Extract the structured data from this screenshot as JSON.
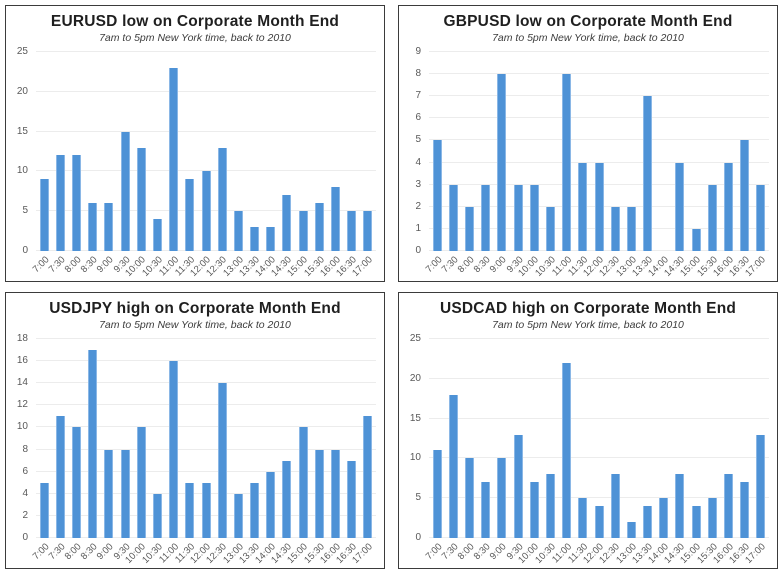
{
  "colors": {
    "bar_fill": "#4e92d6",
    "bar_edge": "#8ab7e6",
    "gridline": "#ececec",
    "axis_label": "#595959",
    "title_text": "#1f1f1f",
    "panel_border": "#3b3b3b",
    "background": "#ffffff"
  },
  "chart_data": [
    {
      "type": "bar",
      "title": "EURUSD low on Corporate Month End",
      "subtitle": "7am to 5pm New York time, back to 2010",
      "xlabel": "",
      "ylabel": "",
      "categories": [
        "7:00",
        "7:30",
        "8:00",
        "8:30",
        "9:00",
        "9:30",
        "10:00",
        "10:30",
        "11:00",
        "11:30",
        "12:00",
        "12:30",
        "13:00",
        "13:30",
        "14:00",
        "14:30",
        "15:00",
        "15:30",
        "16:00",
        "16:30",
        "17:00"
      ],
      "values": [
        9,
        12,
        12,
        6,
        6,
        15,
        13,
        4,
        23,
        9,
        10,
        13,
        5,
        3,
        3,
        7,
        5,
        6,
        8,
        5,
        5
      ],
      "ylim": [
        0,
        25
      ],
      "yticks": [
        0,
        5,
        10,
        15,
        20,
        25
      ],
      "grid": true,
      "legend": "none"
    },
    {
      "type": "bar",
      "title": "GBPUSD low on Corporate Month End",
      "subtitle": "7am to 5pm New York time, back to 2010",
      "xlabel": "",
      "ylabel": "",
      "categories": [
        "7:00",
        "7:30",
        "8:00",
        "8:30",
        "9:00",
        "9:30",
        "10:00",
        "10:30",
        "11:00",
        "11:30",
        "12:00",
        "12:30",
        "13:00",
        "13:30",
        "14:00",
        "14:30",
        "15:00",
        "15:30",
        "16:00",
        "16:30",
        "17:00"
      ],
      "values": [
        5,
        3,
        2,
        3,
        8,
        3,
        3,
        2,
        8,
        4,
        4,
        2,
        2,
        7,
        0,
        4,
        1,
        3,
        4,
        5,
        3
      ],
      "ylim": [
        0,
        9
      ],
      "yticks": [
        0,
        1,
        2,
        3,
        4,
        5,
        6,
        7,
        8,
        9
      ],
      "grid": true,
      "legend": "none"
    },
    {
      "type": "bar",
      "title": "USDJPY high on Corporate Month End",
      "subtitle": "7am to 5pm New York time, back to 2010",
      "xlabel": "",
      "ylabel": "",
      "categories": [
        "7:00",
        "7:30",
        "8:00",
        "8:30",
        "9:00",
        "9:30",
        "10:00",
        "10:30",
        "11:00",
        "11:30",
        "12:00",
        "12:30",
        "13:00",
        "13:30",
        "14:00",
        "14:30",
        "15:00",
        "15:30",
        "16:00",
        "16:30",
        "17:00"
      ],
      "values": [
        5,
        11,
        10,
        17,
        8,
        8,
        10,
        4,
        16,
        5,
        5,
        14,
        4,
        5,
        6,
        7,
        10,
        8,
        8,
        7,
        11
      ],
      "ylim": [
        0,
        18
      ],
      "yticks": [
        0,
        2,
        4,
        6,
        8,
        10,
        12,
        14,
        16,
        18
      ],
      "grid": true,
      "legend": "none"
    },
    {
      "type": "bar",
      "title": "USDCAD high on Corporate Month End",
      "subtitle": "7am to 5pm New York time, back to 2010",
      "xlabel": "",
      "ylabel": "",
      "categories": [
        "7:00",
        "7:30",
        "8:00",
        "8:30",
        "9:00",
        "9:30",
        "10:00",
        "10:30",
        "11:00",
        "11:30",
        "12:00",
        "12:30",
        "13:00",
        "13:30",
        "14:00",
        "14:30",
        "15:00",
        "15:30",
        "16:00",
        "16:30",
        "17:00"
      ],
      "values": [
        11,
        18,
        10,
        7,
        10,
        13,
        7,
        8,
        22,
        5,
        4,
        8,
        2,
        4,
        5,
        8,
        4,
        5,
        8,
        7,
        13
      ],
      "ylim": [
        0,
        25
      ],
      "yticks": [
        0,
        5,
        10,
        15,
        20,
        25
      ],
      "grid": true,
      "legend": "none"
    }
  ]
}
